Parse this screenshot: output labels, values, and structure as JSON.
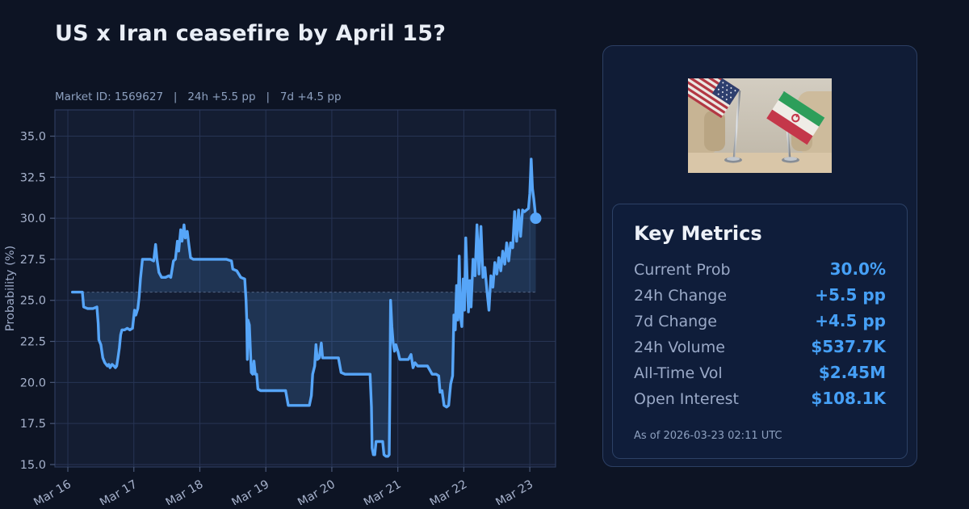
{
  "header": {
    "title": "US x Iran ceasefire by April 15?",
    "subtitle": "Market ID: 1569627   |   24h +5.5 pp   |   7d +4.5 pp"
  },
  "chart_data": {
    "type": "line",
    "ylabel": "Probability (%)",
    "x_tick_labels": [
      "Mar 16",
      "Mar 17",
      "Mar 18",
      "Mar 19",
      "Mar 20",
      "Mar 21",
      "Mar 22",
      "Mar 23"
    ],
    "x_tick_positions": [
      0,
      1,
      2,
      3,
      4,
      5,
      6,
      7
    ],
    "y_ticks": [
      15.0,
      17.5,
      20.0,
      22.5,
      25.0,
      27.5,
      30.0,
      32.5,
      35.0
    ],
    "xlim": [
      -0.196,
      7.39
    ],
    "ylim": [
      14.85,
      36.6
    ],
    "baseline": 25.5,
    "grid": true,
    "line_color": "#56a5f8",
    "fill_color": "rgba(86,165,248,0.17)",
    "end_marker": true,
    "last_value": 30.0,
    "series": [
      {
        "name": "probability",
        "points": [
          [
            0.07,
            25.5
          ],
          [
            0.15,
            25.5
          ],
          [
            0.22,
            25.5
          ],
          [
            0.24,
            24.6
          ],
          [
            0.3,
            24.5
          ],
          [
            0.38,
            24.5
          ],
          [
            0.44,
            24.6
          ],
          [
            0.46,
            23.6
          ],
          [
            0.47,
            22.6
          ],
          [
            0.5,
            22.3
          ],
          [
            0.53,
            21.5
          ],
          [
            0.56,
            21.2
          ],
          [
            0.58,
            21.1
          ],
          [
            0.6,
            21.0
          ],
          [
            0.62,
            21.1
          ],
          [
            0.64,
            20.9
          ],
          [
            0.67,
            21.1
          ],
          [
            0.7,
            21.0
          ],
          [
            0.72,
            20.9
          ],
          [
            0.74,
            21.0
          ],
          [
            0.76,
            21.5
          ],
          [
            0.78,
            22.1
          ],
          [
            0.8,
            22.9
          ],
          [
            0.82,
            23.2
          ],
          [
            0.86,
            23.2
          ],
          [
            0.9,
            23.3
          ],
          [
            0.94,
            23.2
          ],
          [
            0.98,
            23.3
          ],
          [
            1.01,
            24.4
          ],
          [
            1.03,
            24.1
          ],
          [
            1.06,
            24.5
          ],
          [
            1.08,
            25.2
          ],
          [
            1.1,
            26.3
          ],
          [
            1.13,
            27.5
          ],
          [
            1.18,
            27.5
          ],
          [
            1.25,
            27.5
          ],
          [
            1.3,
            27.4
          ],
          [
            1.33,
            28.4
          ],
          [
            1.35,
            27.5
          ],
          [
            1.38,
            26.7
          ],
          [
            1.42,
            26.4
          ],
          [
            1.48,
            26.4
          ],
          [
            1.53,
            26.5
          ],
          [
            1.56,
            26.4
          ],
          [
            1.6,
            27.4
          ],
          [
            1.63,
            27.5
          ],
          [
            1.66,
            28.6
          ],
          [
            1.68,
            28.0
          ],
          [
            1.71,
            29.3
          ],
          [
            1.73,
            28.6
          ],
          [
            1.76,
            29.6
          ],
          [
            1.78,
            28.8
          ],
          [
            1.81,
            29.2
          ],
          [
            1.83,
            28.5
          ],
          [
            1.86,
            27.6
          ],
          [
            1.9,
            27.5
          ],
          [
            2.0,
            27.5
          ],
          [
            2.1,
            27.5
          ],
          [
            2.2,
            27.5
          ],
          [
            2.3,
            27.5
          ],
          [
            2.4,
            27.5
          ],
          [
            2.48,
            27.4
          ],
          [
            2.5,
            26.9
          ],
          [
            2.56,
            26.8
          ],
          [
            2.62,
            26.4
          ],
          [
            2.68,
            26.3
          ],
          [
            2.7,
            25.0
          ],
          [
            2.71,
            23.9
          ],
          [
            2.72,
            21.4
          ],
          [
            2.73,
            23.8
          ],
          [
            2.75,
            23.5
          ],
          [
            2.77,
            21.6
          ],
          [
            2.78,
            20.6
          ],
          [
            2.8,
            20.5
          ],
          [
            2.82,
            21.3
          ],
          [
            2.84,
            20.5
          ],
          [
            2.86,
            20.5
          ],
          [
            2.88,
            19.6
          ],
          [
            2.92,
            19.5
          ],
          [
            3.0,
            19.5
          ],
          [
            3.1,
            19.5
          ],
          [
            3.2,
            19.5
          ],
          [
            3.3,
            19.5
          ],
          [
            3.34,
            18.6
          ],
          [
            3.4,
            18.6
          ],
          [
            3.5,
            18.6
          ],
          [
            3.6,
            18.6
          ],
          [
            3.66,
            18.6
          ],
          [
            3.69,
            19.2
          ],
          [
            3.71,
            20.5
          ],
          [
            3.74,
            21.0
          ],
          [
            3.76,
            22.3
          ],
          [
            3.78,
            21.4
          ],
          [
            3.81,
            21.5
          ],
          [
            3.84,
            22.4
          ],
          [
            3.86,
            21.5
          ],
          [
            3.9,
            21.5
          ],
          [
            3.95,
            21.5
          ],
          [
            4.0,
            21.5
          ],
          [
            4.05,
            21.5
          ],
          [
            4.1,
            21.5
          ],
          [
            4.14,
            20.6
          ],
          [
            4.2,
            20.5
          ],
          [
            4.3,
            20.5
          ],
          [
            4.4,
            20.5
          ],
          [
            4.5,
            20.5
          ],
          [
            4.58,
            20.5
          ],
          [
            4.6,
            18.5
          ],
          [
            4.61,
            16.0
          ],
          [
            4.63,
            15.6
          ],
          [
            4.65,
            15.6
          ],
          [
            4.67,
            16.4
          ],
          [
            4.7,
            16.4
          ],
          [
            4.74,
            16.4
          ],
          [
            4.77,
            16.4
          ],
          [
            4.79,
            15.6
          ],
          [
            4.82,
            15.5
          ],
          [
            4.85,
            15.5
          ],
          [
            4.87,
            15.6
          ],
          [
            4.88,
            20.0
          ],
          [
            4.89,
            25.0
          ],
          [
            4.91,
            23.4
          ],
          [
            4.93,
            22.4
          ],
          [
            4.95,
            21.9
          ],
          [
            4.97,
            22.3
          ],
          [
            5.0,
            21.9
          ],
          [
            5.03,
            21.4
          ],
          [
            5.1,
            21.4
          ],
          [
            5.16,
            21.4
          ],
          [
            5.2,
            21.7
          ],
          [
            5.23,
            20.9
          ],
          [
            5.26,
            21.2
          ],
          [
            5.3,
            21.0
          ],
          [
            5.38,
            21.0
          ],
          [
            5.45,
            21.0
          ],
          [
            5.52,
            20.5
          ],
          [
            5.58,
            20.5
          ],
          [
            5.62,
            20.4
          ],
          [
            5.64,
            19.4
          ],
          [
            5.67,
            19.5
          ],
          [
            5.7,
            18.6
          ],
          [
            5.74,
            18.5
          ],
          [
            5.77,
            18.6
          ],
          [
            5.8,
            19.9
          ],
          [
            5.83,
            20.4
          ],
          [
            5.85,
            24.1
          ],
          [
            5.87,
            23.2
          ],
          [
            5.89,
            25.9
          ],
          [
            5.91,
            23.8
          ],
          [
            5.93,
            27.7
          ],
          [
            5.95,
            24.0
          ],
          [
            5.97,
            23.4
          ],
          [
            5.99,
            26.3
          ],
          [
            6.01,
            24.4
          ],
          [
            6.03,
            28.8
          ],
          [
            6.05,
            26.4
          ],
          [
            6.07,
            24.3
          ],
          [
            6.09,
            26.2
          ],
          [
            6.11,
            24.6
          ],
          [
            6.14,
            27.5
          ],
          [
            6.17,
            26.5
          ],
          [
            6.2,
            29.6
          ],
          [
            6.23,
            26.6
          ],
          [
            6.26,
            29.5
          ],
          [
            6.29,
            26.4
          ],
          [
            6.32,
            27.0
          ],
          [
            6.35,
            25.6
          ],
          [
            6.38,
            24.4
          ],
          [
            6.41,
            26.5
          ],
          [
            6.44,
            25.8
          ],
          [
            6.47,
            27.3
          ],
          [
            6.5,
            26.6
          ],
          [
            6.53,
            27.6
          ],
          [
            6.56,
            26.8
          ],
          [
            6.59,
            28.0
          ],
          [
            6.62,
            27.2
          ],
          [
            6.65,
            28.5
          ],
          [
            6.68,
            27.4
          ],
          [
            6.71,
            28.5
          ],
          [
            6.74,
            28.2
          ],
          [
            6.77,
            30.4
          ],
          [
            6.8,
            28.6
          ],
          [
            6.83,
            30.5
          ],
          [
            6.86,
            28.9
          ],
          [
            6.89,
            30.5
          ],
          [
            6.92,
            30.4
          ],
          [
            6.95,
            30.5
          ],
          [
            6.98,
            30.6
          ],
          [
            7.0,
            31.5
          ],
          [
            7.02,
            33.6
          ],
          [
            7.04,
            31.8
          ],
          [
            7.06,
            31.2
          ],
          [
            7.09,
            30.0
          ]
        ]
      }
    ]
  },
  "panel": {
    "image_name": "us-iran-table-flags-photo"
  },
  "metrics": {
    "title": "Key Metrics",
    "rows": [
      {
        "label": "Current Prob",
        "value": "30.0%"
      },
      {
        "label": "24h Change",
        "value": "+5.5 pp"
      },
      {
        "label": "7d Change",
        "value": "+4.5 pp"
      },
      {
        "label": "24h Volume",
        "value": "$537.7K"
      },
      {
        "label": "All-Time Vol",
        "value": "$2.45M"
      },
      {
        "label": "Open Interest",
        "value": "$108.1K"
      }
    ],
    "footer": "As of 2026-03-23 02:11 UTC",
    "value_color": "#46a0f6"
  },
  "colors": {
    "page_bg": "#0d1424",
    "plot_bg": "#141d32",
    "grid": "#273454",
    "line": "#56a5f8",
    "card_bg": "#101c36",
    "card_border": "#2c3f63",
    "accent_blue": "#46a0f6"
  }
}
